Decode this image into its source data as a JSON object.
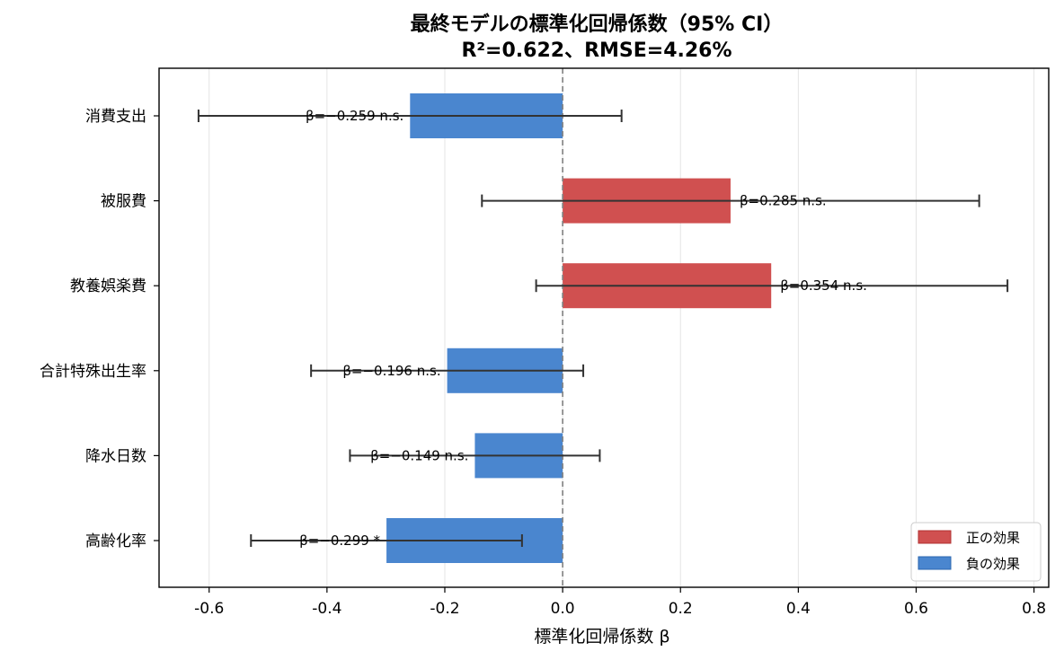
{
  "colors": {
    "positive": "#d05050",
    "negative": "#4a86cf"
  },
  "chart_data": {
    "type": "bar",
    "orientation": "horizontal",
    "title": [
      "最終モデルの標準化回帰係数（95% CI）",
      "R²=0.622、RMSE=4.26%"
    ],
    "xlabel": "標準化回帰係数 β",
    "ylabel": "",
    "xlim": [
      -0.685,
      0.825
    ],
    "xticks": [
      -0.6,
      -0.4,
      -0.2,
      0.0,
      0.2,
      0.4,
      0.6,
      0.8
    ],
    "xtick_labels": [
      "-0.6",
      "-0.4",
      "-0.2",
      "0.0",
      "0.2",
      "0.4",
      "0.6",
      "0.8"
    ],
    "grid": true,
    "legend_position": "bottom-right",
    "legend": [
      {
        "label": "正の効果",
        "sign": "positive"
      },
      {
        "label": "負の効果",
        "sign": "negative"
      }
    ],
    "categories": [
      "消費支出",
      "被服費",
      "教養娯楽費",
      "合計特殊出生率",
      "降水日数",
      "高齢化率"
    ],
    "values": [
      -0.259,
      0.285,
      0.354,
      -0.196,
      -0.149,
      -0.299
    ],
    "ci_low": [
      -0.618,
      -0.137,
      -0.045,
      -0.427,
      -0.361,
      -0.529
    ],
    "ci_high": [
      0.1,
      0.707,
      0.755,
      0.035,
      0.063,
      -0.069
    ],
    "annotations": [
      "β=−0.259 n.s.",
      "β=0.285 n.s.",
      "β=0.354 n.s.",
      "β=−0.196 n.s.",
      "β=−0.149 n.s.",
      "β=−0.299 *"
    ]
  }
}
